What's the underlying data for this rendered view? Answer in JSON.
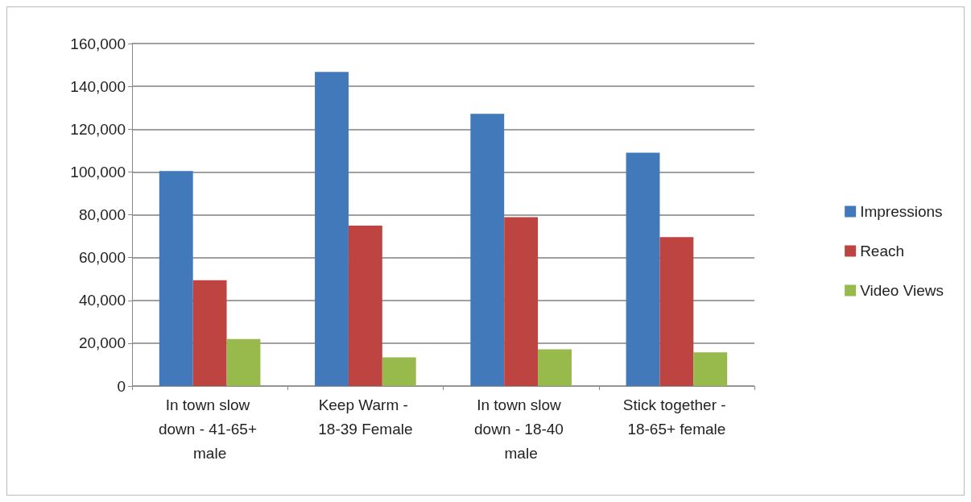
{
  "chart_data": {
    "type": "bar",
    "categories": [
      "In town slow down - 41-65+ male",
      "Keep Warm - 18-39 Female",
      "In town slow down - 18-40 male",
      "Stick together - 18-65+ female"
    ],
    "series": [
      {
        "name": "Impressions",
        "color": "#4279bb",
        "values": [
          100400,
          146700,
          127200,
          109000
        ]
      },
      {
        "name": "Reach",
        "color": "#be4441",
        "values": [
          49400,
          74900,
          78900,
          69600
        ]
      },
      {
        "name": "Video Views",
        "color": "#98b94b",
        "values": [
          21900,
          13400,
          17100,
          15700
        ]
      }
    ],
    "ylim": [
      0,
      160000
    ],
    "yticks": [
      0,
      {
        "value": 20000,
        "label": "20,000"
      },
      {
        "value": 40000,
        "label": "40,000"
      },
      {
        "value": 60000,
        "label": "60,000"
      },
      {
        "value": 80000,
        "label": "80,000"
      },
      {
        "value": 100000,
        "label": "100,000"
      },
      {
        "value": 120000,
        "label": "120,000"
      },
      {
        "value": 140000,
        "label": "140,000"
      },
      {
        "value": 160000,
        "label": "160,000"
      }
    ],
    "grid": "y",
    "legend": "right"
  }
}
